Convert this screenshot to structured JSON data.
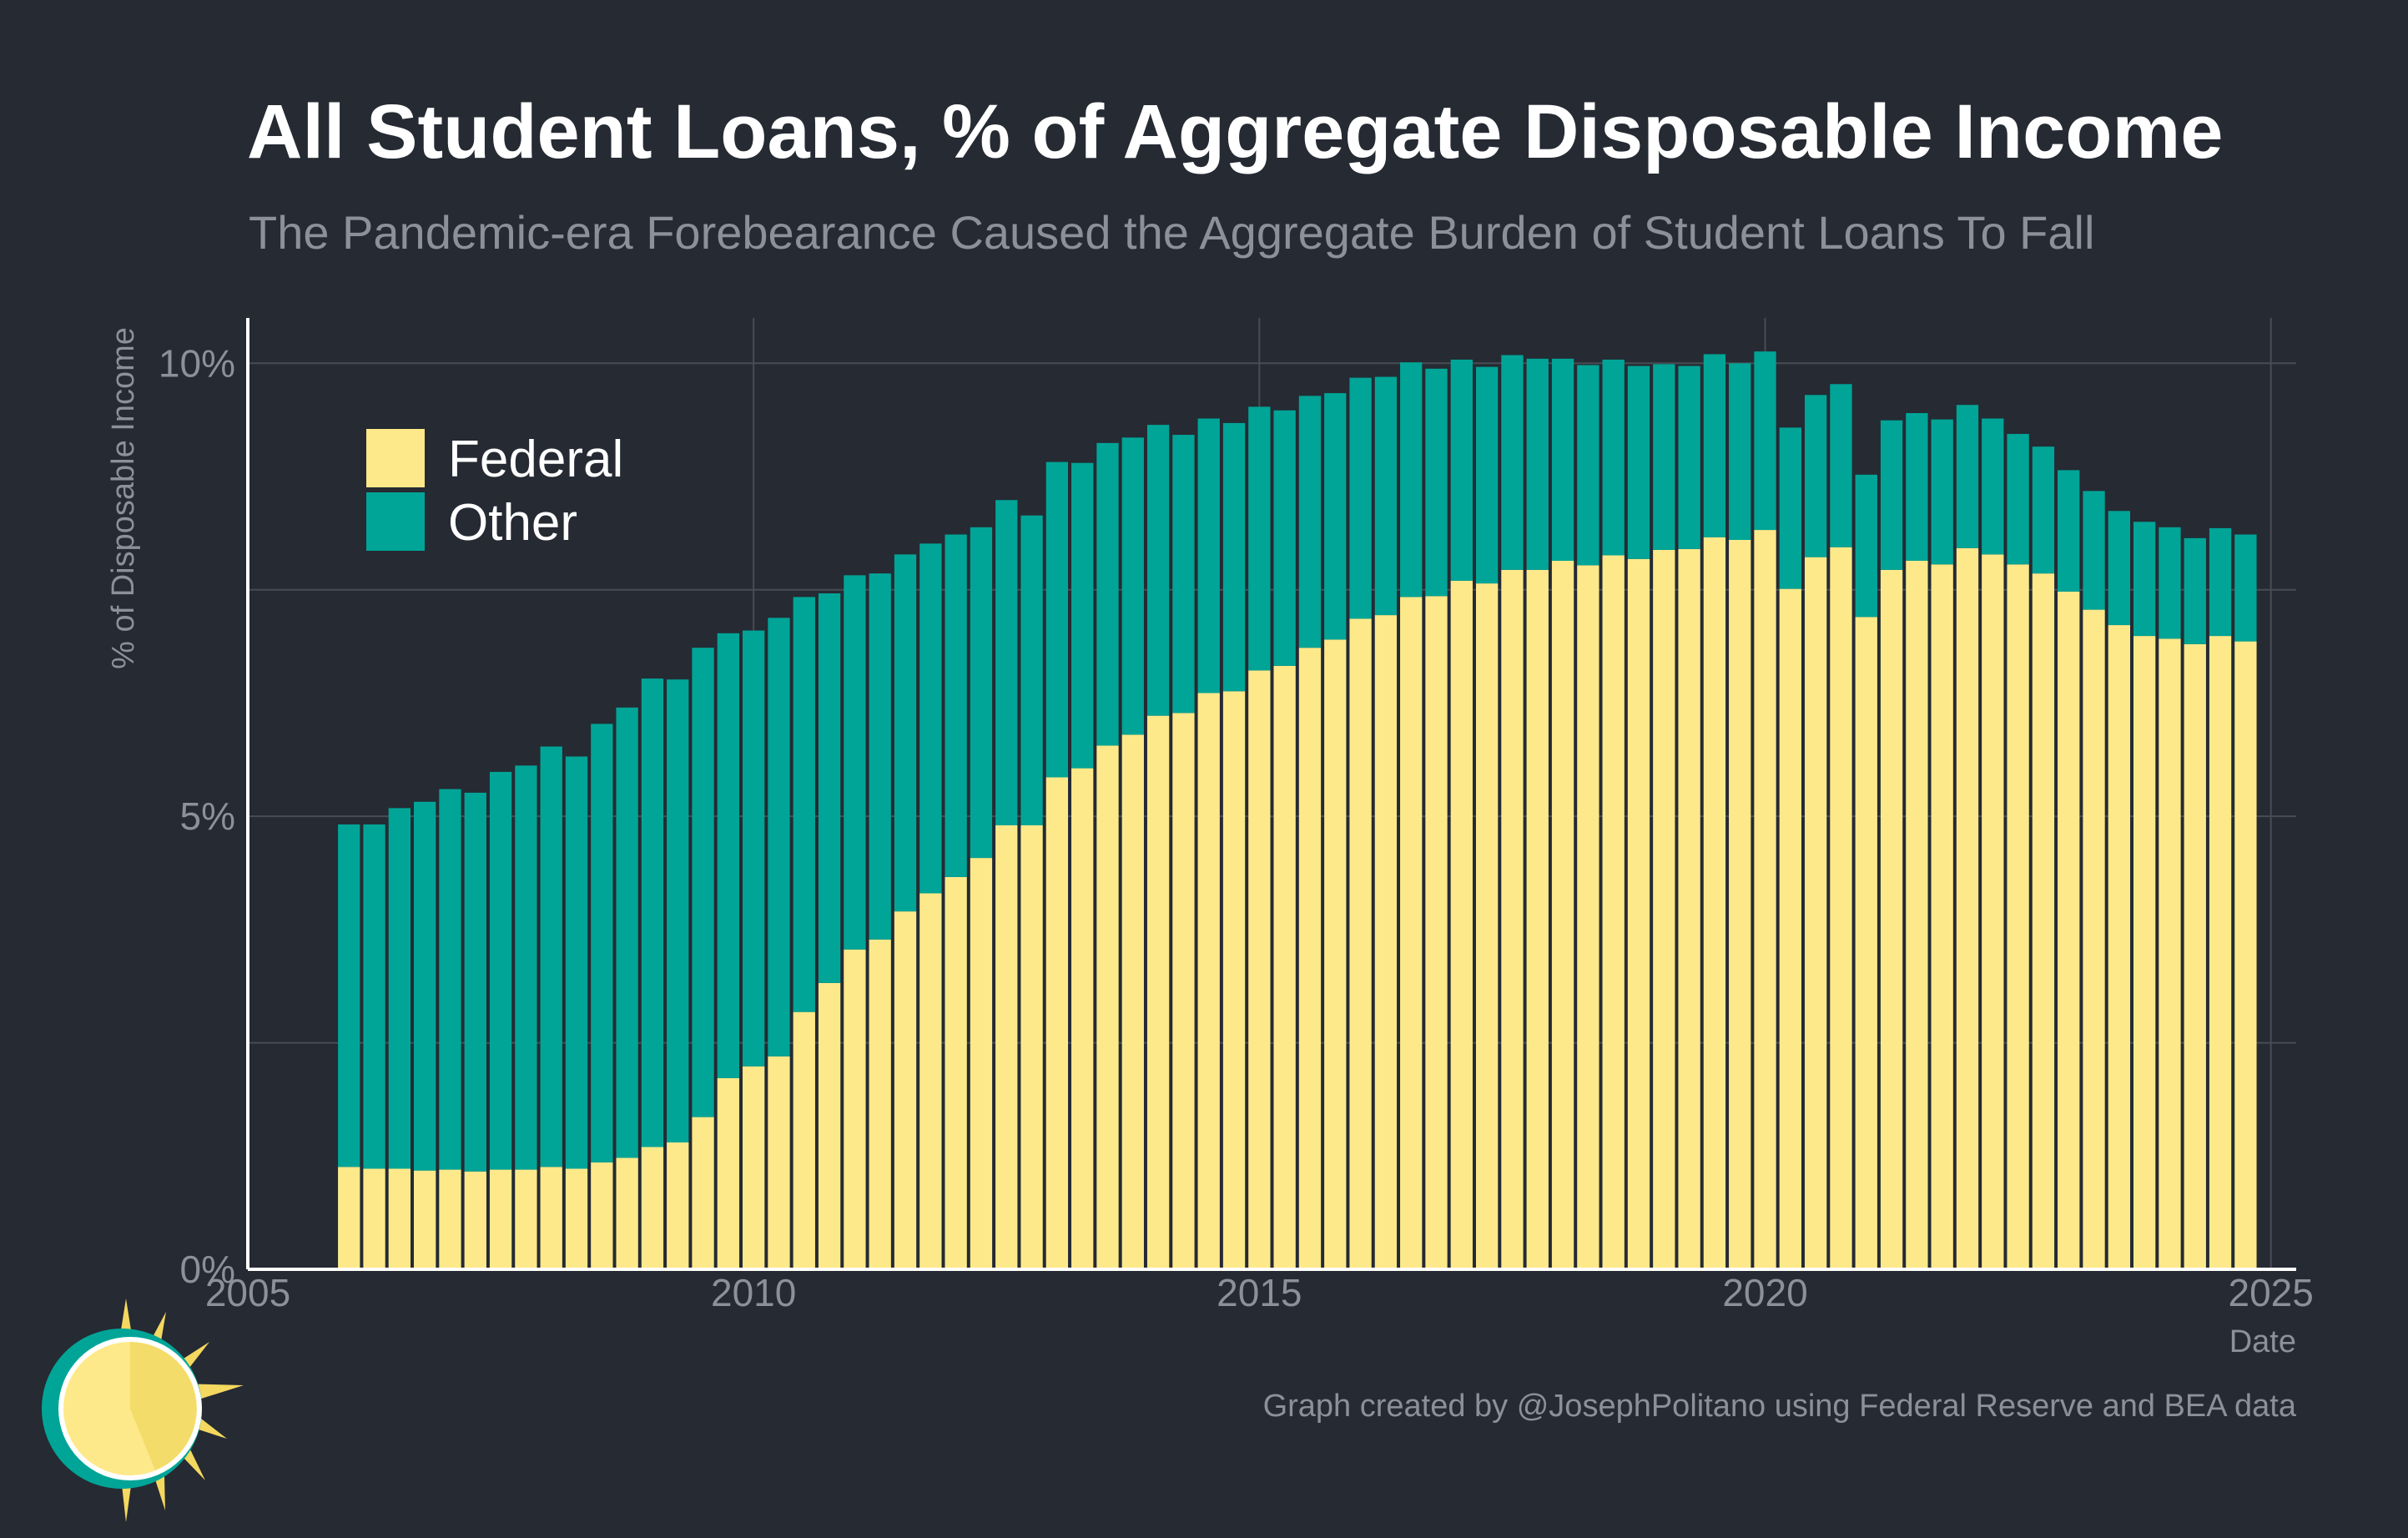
{
  "title": "All Student Loans, % of Aggregate Disposable Income",
  "subtitle": "The Pandemic-era Forebearance Caused the Aggregate Burden of Student Loans To Fall",
  "caption": "Graph created by @JosephPolitano using Federal Reserve and BEA data",
  "colors": {
    "background": "#252a33",
    "federal": "#fde98a",
    "other": "#00a597",
    "grid": "#474c55",
    "axis": "#ffffff",
    "muted_text": "#8c9099"
  },
  "chart_data": {
    "type": "bar",
    "stacked": true,
    "title": "All Student Loans, % of Aggregate Disposable Income",
    "subtitle": "The Pandemic-era Forebearance Caused the Aggregate Burden of Student Loans To Fall",
    "xlabel": "Date",
    "ylabel": "% of Disposable Income",
    "xlim": [
      2005,
      2025.25
    ],
    "ylim": [
      0,
      10.5
    ],
    "xticks": [
      2005,
      2010,
      2015,
      2020,
      2025
    ],
    "xtick_labels": [
      "2005",
      "2010",
      "2015",
      "2020",
      "2025"
    ],
    "yticks": [
      0,
      5,
      10
    ],
    "ytick_labels": [
      "0%",
      "5%",
      "10%"
    ],
    "grid": true,
    "legend_position": "top-left",
    "x": [
      2006.0,
      2006.25,
      2006.5,
      2006.75,
      2007.0,
      2007.25,
      2007.5,
      2007.75,
      2008.0,
      2008.25,
      2008.5,
      2008.75,
      2009.0,
      2009.25,
      2009.5,
      2009.75,
      2010.0,
      2010.25,
      2010.5,
      2010.75,
      2011.0,
      2011.25,
      2011.5,
      2011.75,
      2012.0,
      2012.25,
      2012.5,
      2012.75,
      2013.0,
      2013.25,
      2013.5,
      2013.75,
      2014.0,
      2014.25,
      2014.5,
      2014.75,
      2015.0,
      2015.25,
      2015.5,
      2015.75,
      2016.0,
      2016.25,
      2016.5,
      2016.75,
      2017.0,
      2017.25,
      2017.5,
      2017.75,
      2018.0,
      2018.25,
      2018.5,
      2018.75,
      2019.0,
      2019.25,
      2019.5,
      2019.75,
      2020.0,
      2020.25,
      2020.5,
      2020.75,
      2021.0,
      2021.25,
      2021.5,
      2021.75,
      2022.0,
      2022.25,
      2022.5,
      2022.75,
      2023.0,
      2023.25,
      2023.5,
      2023.75,
      2024.0,
      2024.25,
      2024.5,
      2024.75
    ],
    "series": [
      {
        "name": "Federal",
        "color": "#fde98a",
        "values": [
          1.13,
          1.11,
          1.11,
          1.09,
          1.1,
          1.08,
          1.1,
          1.1,
          1.13,
          1.11,
          1.18,
          1.23,
          1.35,
          1.4,
          1.68,
          2.11,
          2.24,
          2.35,
          2.84,
          3.16,
          3.53,
          3.64,
          3.95,
          4.15,
          4.33,
          4.54,
          4.9,
          4.9,
          5.43,
          5.53,
          5.78,
          5.9,
          6.11,
          6.14,
          6.36,
          6.38,
          6.61,
          6.66,
          6.86,
          6.95,
          7.18,
          7.22,
          7.42,
          7.43,
          7.6,
          7.57,
          7.72,
          7.72,
          7.82,
          7.77,
          7.88,
          7.84,
          7.94,
          7.95,
          8.08,
          8.05,
          8.16,
          7.51,
          7.86,
          7.97,
          7.2,
          7.72,
          7.82,
          7.78,
          7.96,
          7.89,
          7.78,
          7.68,
          7.48,
          7.28,
          7.11,
          6.99,
          6.96,
          6.9,
          6.99,
          6.93
        ]
      },
      {
        "name": "Other",
        "color": "#00a597",
        "values": [
          3.78,
          3.8,
          3.98,
          4.07,
          4.2,
          4.18,
          4.39,
          4.46,
          4.64,
          4.55,
          4.84,
          4.97,
          5.17,
          5.11,
          5.18,
          4.91,
          4.81,
          4.84,
          4.58,
          4.3,
          4.13,
          4.04,
          3.94,
          3.86,
          3.78,
          3.65,
          3.59,
          3.42,
          3.48,
          3.37,
          3.34,
          3.28,
          3.21,
          3.07,
          3.03,
          2.96,
          2.91,
          2.82,
          2.78,
          2.72,
          2.66,
          2.63,
          2.59,
          2.51,
          2.44,
          2.39,
          2.37,
          2.33,
          2.23,
          2.21,
          2.16,
          2.13,
          2.05,
          2.02,
          2.02,
          1.95,
          1.97,
          1.78,
          1.79,
          1.8,
          1.57,
          1.65,
          1.63,
          1.6,
          1.58,
          1.5,
          1.44,
          1.4,
          1.34,
          1.31,
          1.26,
          1.26,
          1.23,
          1.17,
          1.19,
          1.18
        ]
      }
    ]
  }
}
